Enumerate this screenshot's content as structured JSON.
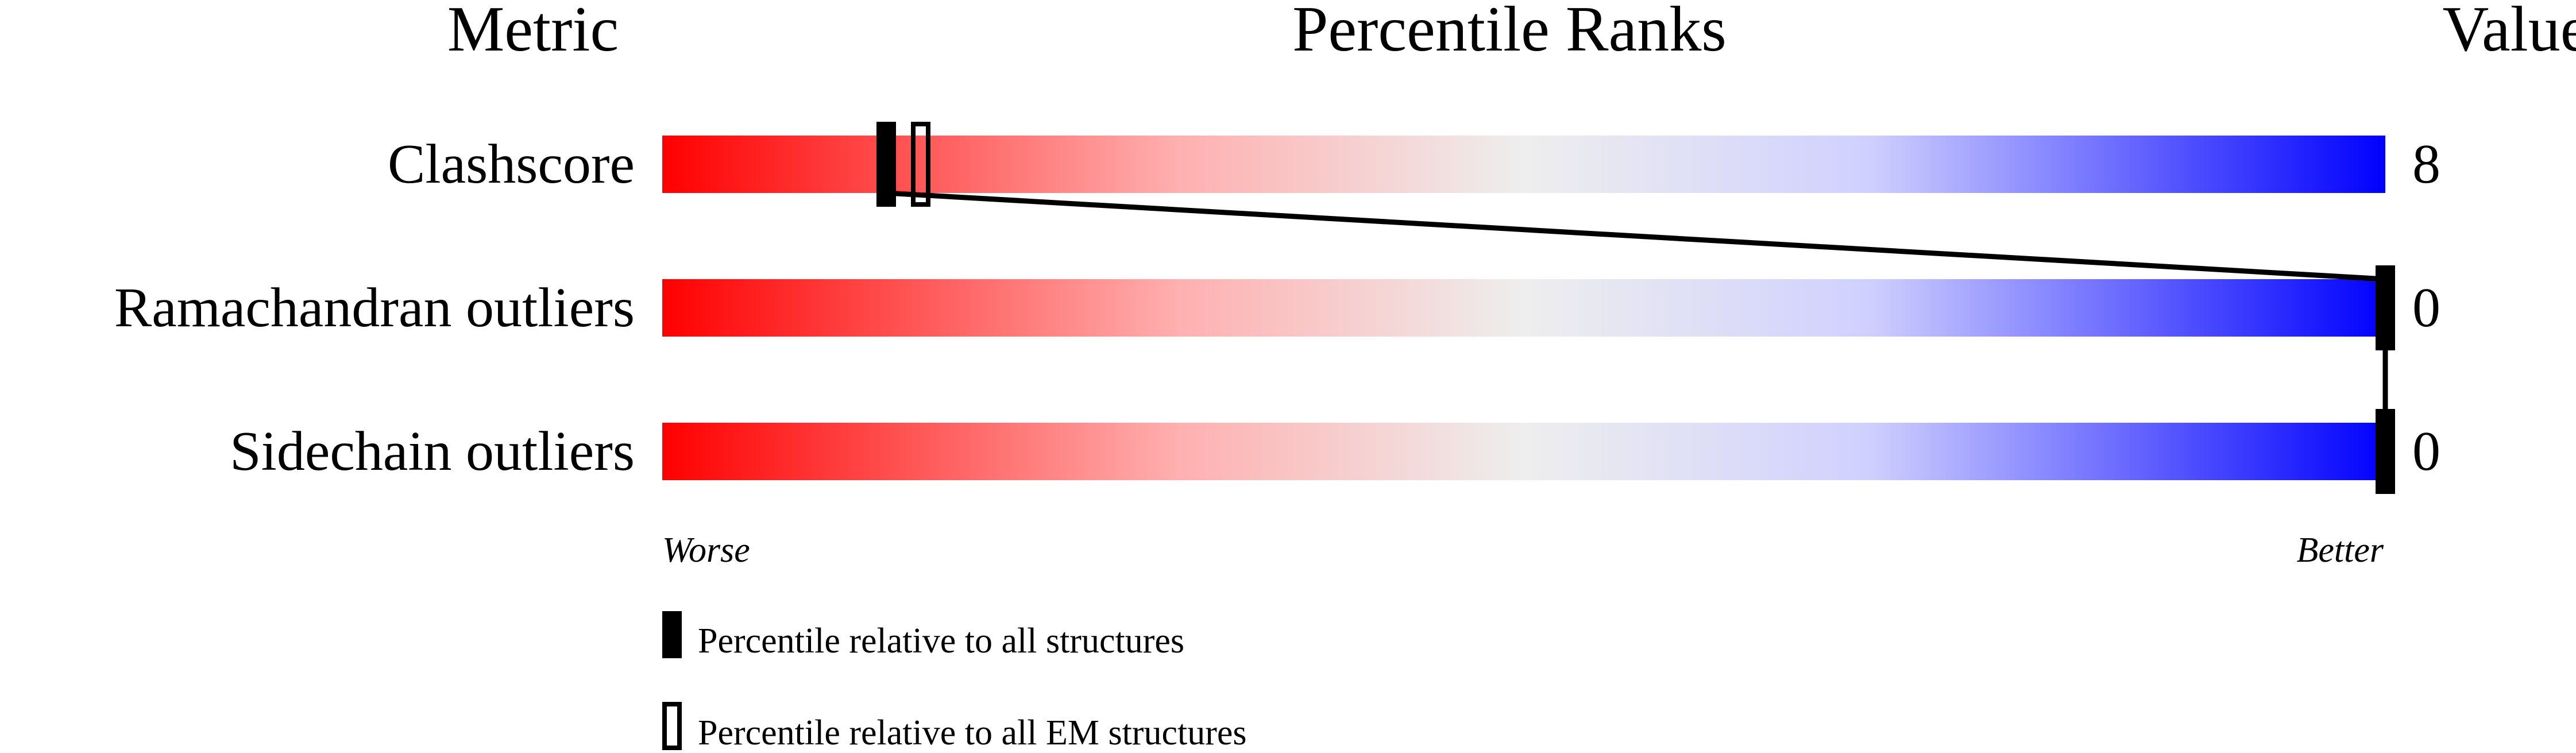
{
  "chart_data": {
    "type": "percentile-bar",
    "headers": {
      "metric": "Metric",
      "ranks": "Percentile Ranks",
      "value": "Value"
    },
    "xlim": [
      0,
      100
    ],
    "axis_labels": {
      "left": "Worse",
      "right": "Better"
    },
    "gradient_colors": [
      "#ff0000",
      "#eeeeee",
      "#0000ff"
    ],
    "rows": [
      {
        "metric": "Clashscore",
        "value": "8",
        "percentile_all": 13,
        "percentile_em": 15
      },
      {
        "metric": "Ramachandran outliers",
        "value": "0",
        "percentile_all": 100,
        "percentile_em": null
      },
      {
        "metric": "Sidechain outliers",
        "value": "0",
        "percentile_all": 100,
        "percentile_em": null
      }
    ],
    "legend": [
      {
        "marker": "filled",
        "label": "Percentile relative to all structures"
      },
      {
        "marker": "open",
        "label": "Percentile relative to all EM structures"
      }
    ]
  }
}
